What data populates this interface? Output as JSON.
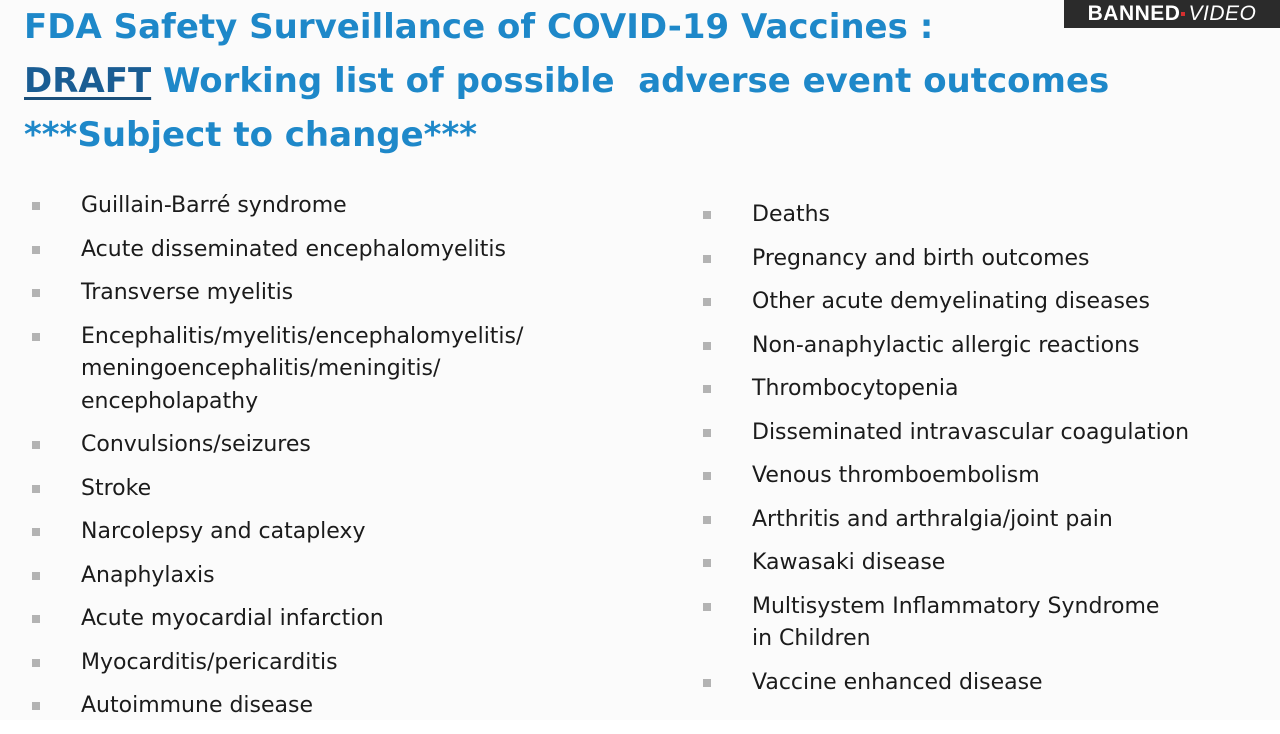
{
  "watermark": {
    "part1": "BANNED",
    "part2": "VIDEO",
    "accent_color": "#d32f2f"
  },
  "title": {
    "line1": "FDA Safety Surveillance of COVID-19 Vaccines :",
    "line2_underlined": "DRAFT",
    "line2_rest": " Working list of possible  adverse event outcomes",
    "line3": "***Subject to change***",
    "color": "#1e88c9"
  },
  "left_items": [
    "Guillain-Barré syndrome",
    "Acute disseminated encephalomyelitis",
    "Transverse myelitis",
    "Encephalitis/myelitis/encephalomyelitis/\nmeningoencephalitis/meningitis/\nencepholapathy",
    "Convulsions/seizures",
    "Stroke",
    "Narcolepsy and cataplexy",
    "Anaphylaxis",
    "Acute myocardial infarction",
    "Myocarditis/pericarditis",
    "Autoimmune disease"
  ],
  "right_items": [
    "Deaths",
    "Pregnancy and birth outcomes",
    "Other acute demyelinating diseases",
    "Non-anaphylactic allergic reactions",
    "Thrombocytopenia",
    "Disseminated intravascular coagulation",
    "Venous thromboembolism",
    "Arthritis and arthralgia/joint pain",
    "Kawasaki disease",
    "Multisystem Inflammatory Syndrome\nin Children",
    "Vaccine enhanced disease"
  ]
}
